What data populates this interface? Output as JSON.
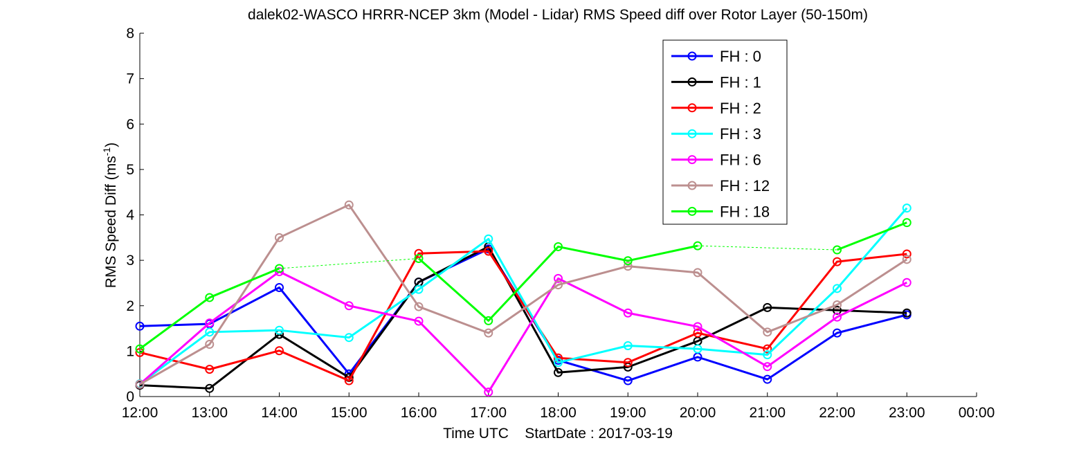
{
  "chart_data": {
    "type": "line",
    "title": "dalek02-WASCO HRRR-NCEP 3km (Model - Lidar) RMS Speed diff over Rotor Layer (50-150m)",
    "xlabel": "Time UTC    StartDate : 2017-03-19",
    "ylabel_main": "RMS Speed Diff (ms",
    "ylabel_sup": "-1",
    "ylabel_close": ")",
    "x_ticks": [
      "12:00",
      "13:00",
      "14:00",
      "15:00",
      "16:00",
      "17:00",
      "18:00",
      "19:00",
      "20:00",
      "21:00",
      "22:00",
      "23:00",
      "00:00"
    ],
    "y_ticks": [
      "0",
      "1",
      "2",
      "3",
      "4",
      "5",
      "6",
      "7",
      "8"
    ],
    "xlim": [
      0,
      12
    ],
    "ylim": [
      0,
      8
    ],
    "grid": false,
    "legend_position": "top-right",
    "series": [
      {
        "name": "FH : 0",
        "color": "#0000ff",
        "values": [
          1.55,
          1.6,
          2.4,
          0.5,
          2.52,
          3.25,
          0.8,
          0.35,
          0.87,
          0.38,
          1.4,
          1.8
        ]
      },
      {
        "name": "FH : 1",
        "color": "#000000",
        "values": [
          0.25,
          0.18,
          1.37,
          0.42,
          2.52,
          3.3,
          0.53,
          0.65,
          1.22,
          1.96,
          1.9,
          1.84
        ]
      },
      {
        "name": "FH : 2",
        "color": "#ff0000",
        "values": [
          0.97,
          0.6,
          1.01,
          0.35,
          3.15,
          3.2,
          0.85,
          0.75,
          1.4,
          1.05,
          2.97,
          3.14
        ]
      },
      {
        "name": "FH : 3",
        "color": "#00ffff",
        "values": [
          0.28,
          1.42,
          1.46,
          1.3,
          2.36,
          3.47,
          0.75,
          1.12,
          1.05,
          0.92,
          2.38,
          4.15
        ]
      },
      {
        "name": "FH : 6",
        "color": "#ff00ff",
        "values": [
          0.27,
          1.62,
          2.75,
          2.0,
          1.66,
          0.1,
          2.6,
          1.84,
          1.54,
          0.66,
          1.75,
          2.51
        ]
      },
      {
        "name": "FH : 12",
        "color": "#bc8f8f",
        "values": [
          0.27,
          1.15,
          3.5,
          4.22,
          1.98,
          1.4,
          2.46,
          2.87,
          2.73,
          1.42,
          2.02,
          3.02
        ]
      },
      {
        "name": "FH : 18",
        "color": "#00ff00",
        "values": [
          1.05,
          2.18,
          2.82,
          null,
          3.04,
          1.67,
          3.3,
          2.99,
          3.32,
          null,
          3.23,
          3.83
        ]
      }
    ]
  }
}
